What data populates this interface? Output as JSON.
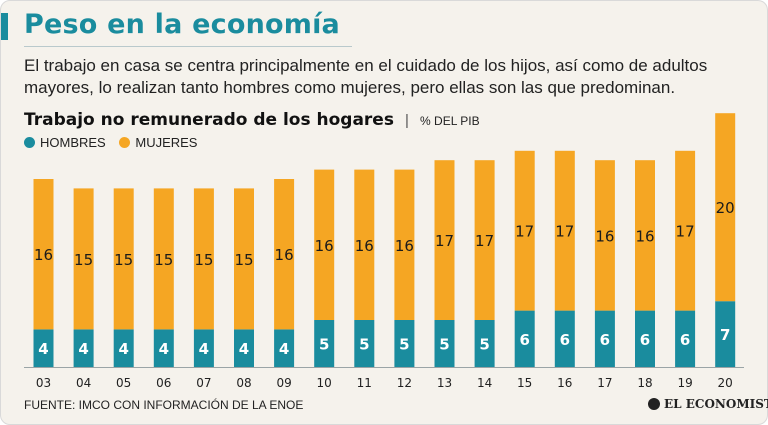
{
  "header": {
    "title": "Peso en la economía",
    "subtitle": "El trabajo en casa se centra principalmente en el cuidado de los hijos, así como de adultos mayores, lo realizan tanto hombres como mujeres, pero ellas son las que predominan."
  },
  "colors": {
    "accent": "#1a8c9e",
    "hombres": "#1a8c9e",
    "mujeres": "#f5a623"
  },
  "footer": {
    "source": "FUENTE: IMCO CON INFORMACIÓN DE LA ENOE",
    "brand": "EL ECONOMISTA"
  },
  "chart_data": {
    "type": "bar",
    "stacked": true,
    "title": "Trabajo no remunerado de los hogares",
    "unit_label": "% DEL PIB",
    "xlabel": "",
    "ylabel": "",
    "ylim": [
      0,
      27
    ],
    "categories": [
      "03",
      "04",
      "05",
      "06",
      "07",
      "08",
      "09",
      "10",
      "11",
      "12",
      "13",
      "14",
      "15",
      "16",
      "17",
      "18",
      "19",
      "20"
    ],
    "series": [
      {
        "name": "HOMBRES",
        "color": "#1a8c9e",
        "values": [
          4,
          4,
          4,
          4,
          4,
          4,
          4,
          5,
          5,
          5,
          5,
          5,
          6,
          6,
          6,
          6,
          6,
          7
        ]
      },
      {
        "name": "MUJERES",
        "color": "#f5a623",
        "values": [
          16,
          15,
          15,
          15,
          15,
          15,
          16,
          16,
          16,
          16,
          17,
          17,
          17,
          17,
          16,
          16,
          17,
          20
        ]
      }
    ]
  }
}
